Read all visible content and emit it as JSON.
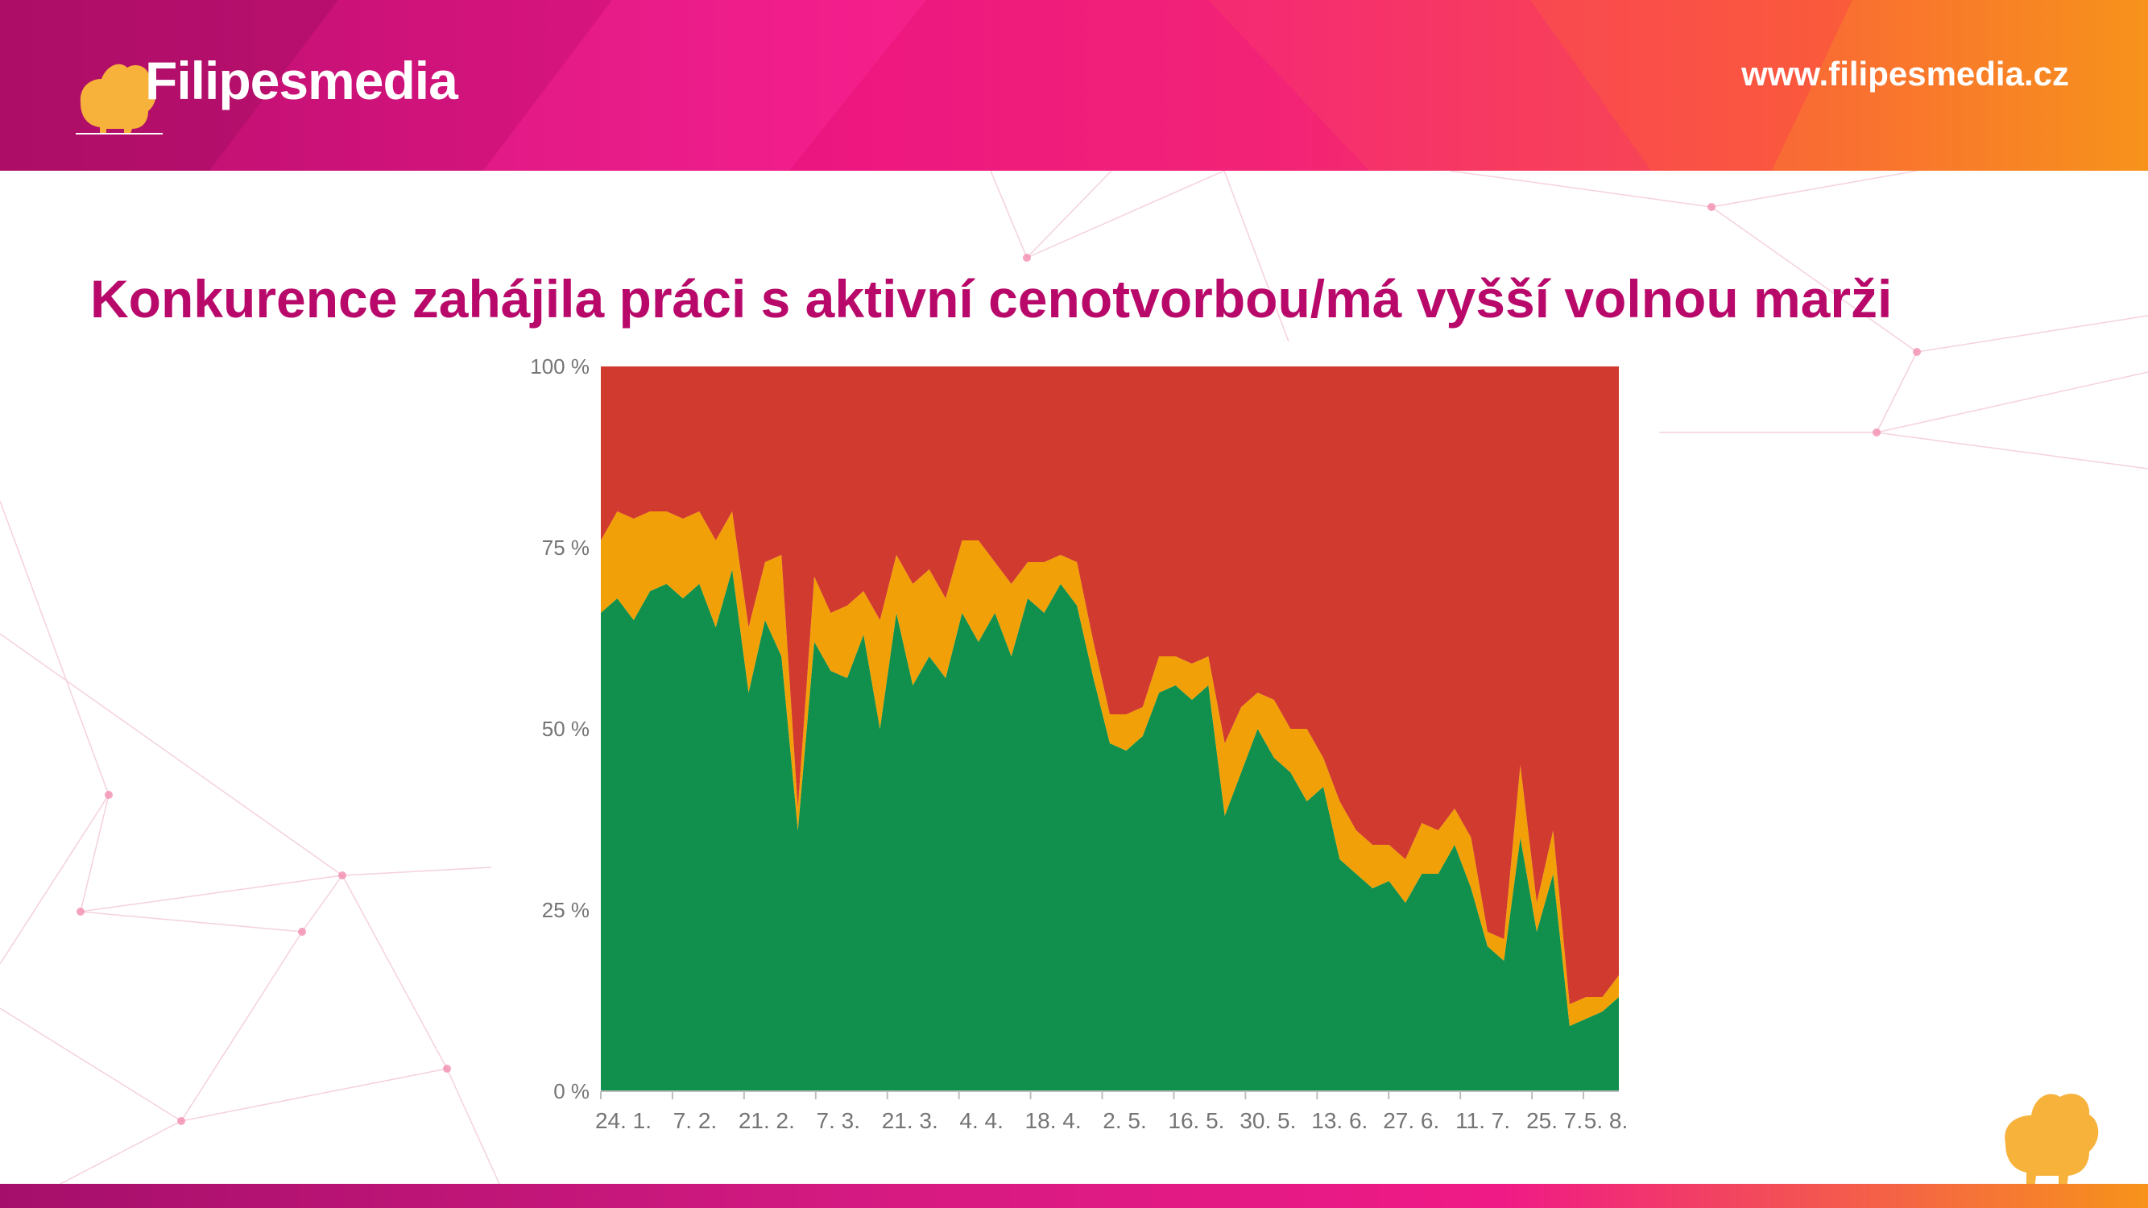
{
  "header": {
    "logo_text": "Filipesmedia",
    "url": "www.filipesmedia.cz"
  },
  "slide": {
    "title": "Konkurence zahájila práci s aktivní cenotvorbou/má vyšší volnou marži"
  },
  "colors": {
    "title": "#b8096b",
    "green": "#10904c",
    "orange": "#f2a007",
    "red": "#d13a2e",
    "dog": "#f7b23b"
  },
  "icons": [
    "dog-logo-icon",
    "dog-mascot-icon"
  ],
  "chart_data": {
    "type": "area",
    "stacked": true,
    "percent": true,
    "ylim": [
      0,
      100
    ],
    "yticks": [
      "0 %",
      "25 %",
      "50 %",
      "75 %",
      "100 %"
    ],
    "xticks": [
      "24. 1.",
      "7. 2.",
      "21. 2.",
      "7. 3.",
      "21. 3.",
      "4. 4.",
      "18. 4.",
      "2. 5.",
      "16. 5.",
      "30. 5.",
      "13. 6.",
      "27. 6.",
      "11. 7.",
      "25. 7.",
      "5. 8."
    ],
    "x": [
      "24. 1.",
      "27. 1.",
      "31. 1.",
      "4. 2.",
      "7. 2.",
      "11. 2.",
      "14. 2.",
      "18. 2.",
      "21. 2.",
      "23. 2.",
      "25. 2.",
      "27. 2.",
      "1. 3.",
      "4. 3.",
      "7. 3.",
      "11. 3.",
      "14. 3.",
      "18. 3.",
      "21. 3.",
      "25. 3.",
      "28. 3.",
      "1. 4.",
      "4. 4.",
      "8. 4.",
      "11. 4.",
      "15. 4.",
      "18. 4.",
      "22. 4.",
      "25. 4.",
      "29. 4.",
      "2. 5.",
      "6. 5.",
      "9. 5.",
      "13. 5.",
      "16. 5.",
      "20. 5.",
      "23. 5.",
      "27. 5.",
      "30. 5.",
      "3. 6.",
      "6. 6.",
      "10. 6.",
      "13. 6.",
      "17. 6.",
      "20. 6.",
      "24. 6.",
      "27. 6.",
      "1. 7.",
      "4. 7.",
      "8. 7.",
      "11. 7.",
      "15. 7.",
      "18. 7.",
      "20. 7.",
      "22. 7.",
      "24. 7.",
      "25. 7.",
      "27. 7.",
      "29. 7.",
      "1. 8.",
      "3. 8.",
      "5. 8.",
      "6. 8."
    ],
    "series": [
      {
        "name": "",
        "color": "#10904c",
        "values": [
          66,
          68,
          65,
          69,
          70,
          68,
          70,
          64,
          72,
          55,
          65,
          60,
          36,
          62,
          58,
          57,
          63,
          50,
          66,
          56,
          60,
          57,
          66,
          62,
          66,
          60,
          68,
          66,
          70,
          67,
          57,
          48,
          47,
          49,
          55,
          56,
          54,
          56,
          38,
          44,
          50,
          46,
          44,
          40,
          42,
          32,
          30,
          28,
          29,
          26,
          30,
          30,
          34,
          28,
          20,
          18,
          35,
          22,
          30,
          9,
          10,
          11,
          13
        ]
      },
      {
        "name": "",
        "color": "#f2a007",
        "values": [
          10,
          12,
          14,
          11,
          10,
          11,
          10,
          12,
          8,
          9,
          8,
          14,
          3,
          9,
          8,
          10,
          6,
          15,
          8,
          14,
          12,
          11,
          10,
          14,
          7,
          10,
          5,
          7,
          4,
          6,
          5,
          4,
          5,
          4,
          5,
          4,
          5,
          4,
          10,
          9,
          5,
          8,
          6,
          10,
          4,
          8,
          6,
          6,
          5,
          6,
          7,
          6,
          5,
          7,
          2,
          3,
          10,
          4,
          6,
          3,
          3,
          2,
          3
        ]
      },
      {
        "name": "",
        "color": "#d13a2e",
        "values": [
          24,
          20,
          21,
          20,
          20,
          21,
          20,
          24,
          20,
          36,
          27,
          26,
          61,
          29,
          34,
          33,
          31,
          35,
          26,
          30,
          28,
          32,
          24,
          24,
          27,
          30,
          27,
          27,
          26,
          27,
          38,
          48,
          48,
          47,
          40,
          40,
          41,
          40,
          52,
          47,
          45,
          46,
          50,
          50,
          54,
          60,
          64,
          66,
          66,
          68,
          63,
          64,
          61,
          65,
          78,
          79,
          55,
          74,
          64,
          88,
          87,
          87,
          84
        ]
      }
    ]
  }
}
